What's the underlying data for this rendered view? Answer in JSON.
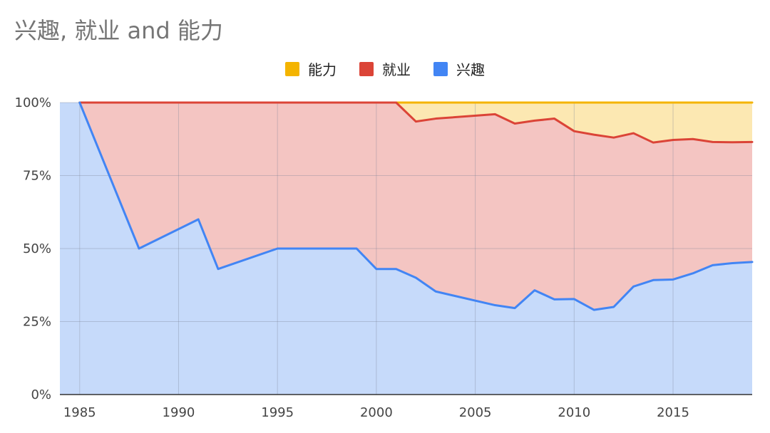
{
  "chart_data": {
    "type": "area",
    "stacked": "percent",
    "title": "兴趣, 就业 and 能力",
    "legend_position": "top",
    "grid": true,
    "xlim": [
      1984,
      2019
    ],
    "ylim": [
      0,
      100
    ],
    "x_ticks": [
      "1985",
      "1990",
      "1995",
      "2000",
      "2005",
      "2010",
      "2015"
    ],
    "y_ticks": [
      "0%",
      "25%",
      "50%",
      "75%",
      "100%"
    ],
    "legend": [
      {
        "name": "能力",
        "color": "#F4B400"
      },
      {
        "name": "就业",
        "color": "#DB4437"
      },
      {
        "name": "兴趣",
        "color": "#4285F4"
      }
    ],
    "x": [
      1985,
      1988,
      1991,
      1992,
      1995,
      1999,
      2000,
      2001,
      2002,
      2003,
      2006,
      2007,
      2008,
      2009,
      2010,
      2011,
      2012,
      2013,
      2014,
      2015,
      2016,
      2017,
      2018,
      2019
    ],
    "series": [
      {
        "name": "兴趣",
        "color": "#4285F4",
        "fill": "#C6DAFA",
        "values": [
          100,
          50,
          60,
          43,
          50,
          50,
          43,
          43,
          40,
          35.3,
          30.6,
          29.6,
          35.7,
          32.6,
          32.7,
          29,
          30,
          37,
          39.2,
          39.4,
          41.5,
          44.3,
          45,
          45.4
        ]
      },
      {
        "name": "就业",
        "color": "#DB4437",
        "fill": "#F4C5C2",
        "values": [
          100,
          100,
          100,
          100,
          100,
          100,
          100,
          100,
          93.5,
          94.5,
          96,
          92.8,
          93.8,
          94.5,
          90.2,
          89,
          88,
          89.5,
          86.3,
          87.2,
          87.5,
          86.5,
          86.4,
          86.5
        ]
      },
      {
        "name": "能力",
        "color": "#F4B400",
        "fill": "#FCE8B2",
        "values": [
          100,
          100,
          100,
          100,
          100,
          100,
          100,
          100,
          100,
          100,
          100,
          100,
          100,
          100,
          100,
          100,
          100,
          100,
          100,
          100,
          100,
          100,
          100,
          100
        ]
      }
    ],
    "series_note_unused": ""
  }
}
